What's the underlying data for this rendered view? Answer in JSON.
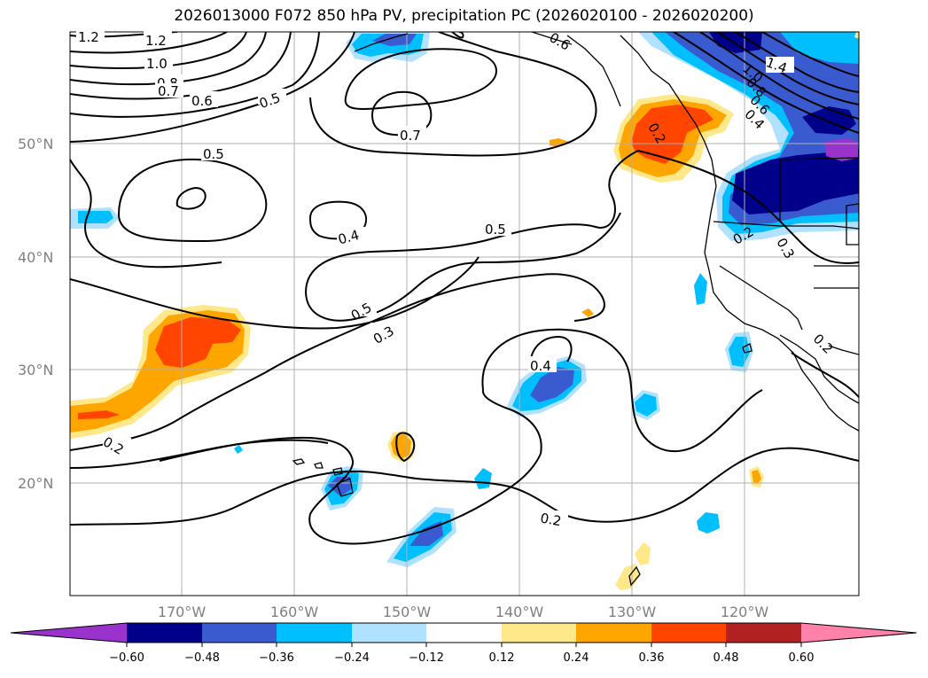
{
  "title": "2026013000 F072 850 hPa PV, precipitation PC (2026020100 - 2026020200)",
  "map": {
    "lat_labels": [
      "50°N",
      "40°N",
      "30°N",
      "20°N"
    ],
    "lon_labels": [
      "170°W",
      "160°W",
      "150°W",
      "140°W",
      "130°W",
      "120°W"
    ],
    "lon_range": [
      -180,
      -110
    ],
    "lat_range": [
      10,
      60
    ],
    "gridlines": true
  },
  "contour_labels": [
    "1.2",
    "1.2",
    "1.0",
    "0.8",
    "0.7",
    "0.6",
    "0.5",
    "0.5",
    "0.7",
    "0.4",
    "0.5",
    "0.5",
    "0.3",
    "0.4",
    "0.2",
    "0.2",
    "1.4",
    "1.0",
    "0.8",
    "0.6",
    "0.4",
    "0.2",
    "0.3",
    "0.2",
    "0.6",
    "0.2"
  ],
  "colorbar": {
    "ticks": [
      "−0.60",
      "−0.48",
      "−0.36",
      "−0.24",
      "−0.12",
      "0.12",
      "0.24",
      "0.36",
      "0.48",
      "0.60"
    ],
    "colors": [
      "#9933cc",
      "#00008b",
      "#3a5bd0",
      "#00bfff",
      "#b0e2ff",
      "#ffffff",
      "#ffe88a",
      "#ffa500",
      "#ff4500",
      "#b22222",
      "#ff82ab"
    ]
  }
}
